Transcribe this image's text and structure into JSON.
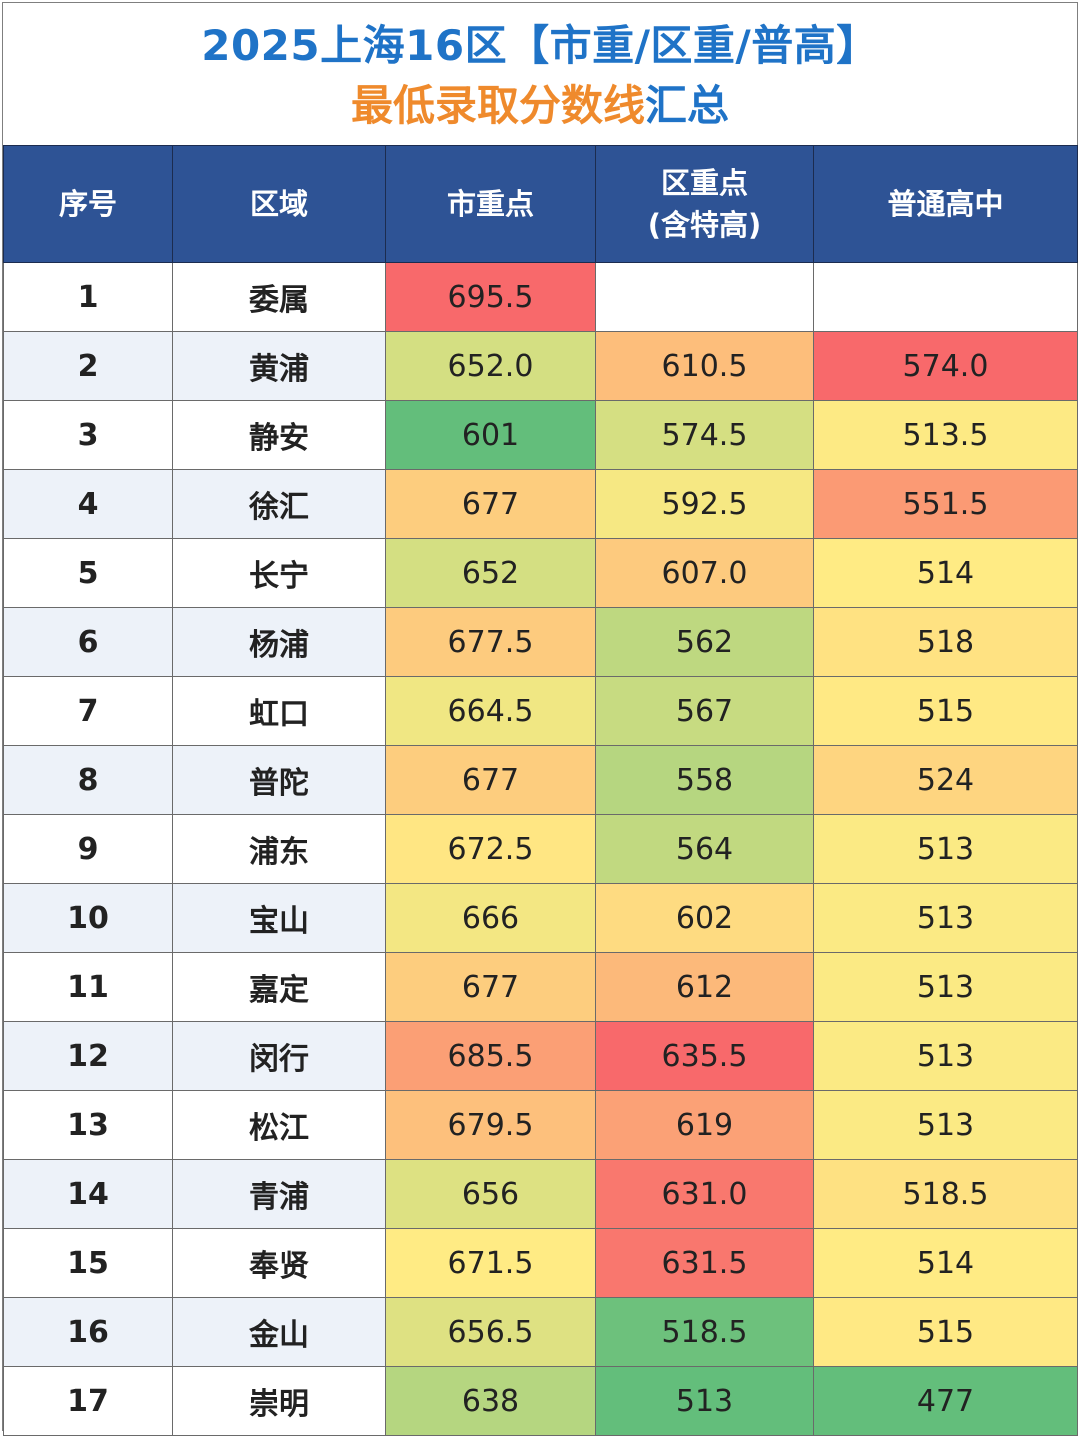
{
  "title": {
    "line1": "2025上海16区【市重/区重/普高】",
    "line2_part1": "最低录取分数线",
    "line2_part2": "汇总"
  },
  "header": {
    "index": "序号",
    "district": "区域",
    "city_key": "市重点",
    "district_key_line1": "区重点",
    "district_key_line2": "(含特高)",
    "regular": "普通高中"
  },
  "colors": {
    "header_bg": "#2e5395",
    "title_blue": "#1f73c7",
    "title_orange": "#ef8a2c",
    "scale_low": "#63be7b",
    "scale_mid": "#ffeb84",
    "scale_high": "#f8696b"
  },
  "rows": [
    {
      "idx": "1",
      "district": "委属",
      "city": "695.5",
      "dist": "",
      "regular": ""
    },
    {
      "idx": "2",
      "district": "黄浦",
      "city": "652.0",
      "dist": "610.5",
      "regular": "574.0"
    },
    {
      "idx": "3",
      "district": "静安",
      "city": "601",
      "dist": "574.5",
      "regular": "513.5"
    },
    {
      "idx": "4",
      "district": "徐汇",
      "city": "677",
      "dist": "592.5",
      "regular": "551.5"
    },
    {
      "idx": "5",
      "district": "长宁",
      "city": "652",
      "dist": "607.0",
      "regular": "514"
    },
    {
      "idx": "6",
      "district": "杨浦",
      "city": "677.5",
      "dist": "562",
      "regular": "518"
    },
    {
      "idx": "7",
      "district": "虹口",
      "city": "664.5",
      "dist": "567",
      "regular": "515"
    },
    {
      "idx": "8",
      "district": "普陀",
      "city": "677",
      "dist": "558",
      "regular": "524"
    },
    {
      "idx": "9",
      "district": "浦东",
      "city": "672.5",
      "dist": "564",
      "regular": "513"
    },
    {
      "idx": "10",
      "district": "宝山",
      "city": "666",
      "dist": "602",
      "regular": "513"
    },
    {
      "idx": "11",
      "district": "嘉定",
      "city": "677",
      "dist": "612",
      "regular": "513"
    },
    {
      "idx": "12",
      "district": "闵行",
      "city": "685.5",
      "dist": "635.5",
      "regular": "513"
    },
    {
      "idx": "13",
      "district": "松江",
      "city": "679.5",
      "dist": "619",
      "regular": "513"
    },
    {
      "idx": "14",
      "district": "青浦",
      "city": "656",
      "dist": "631.0",
      "regular": "518.5"
    },
    {
      "idx": "15",
      "district": "奉贤",
      "city": "671.5",
      "dist": "631.5",
      "regular": "514"
    },
    {
      "idx": "16",
      "district": "金山",
      "city": "656.5",
      "dist": "518.5",
      "regular": "515"
    },
    {
      "idx": "17",
      "district": "崇明",
      "city": "638",
      "dist": "513",
      "regular": "477"
    }
  ]
}
